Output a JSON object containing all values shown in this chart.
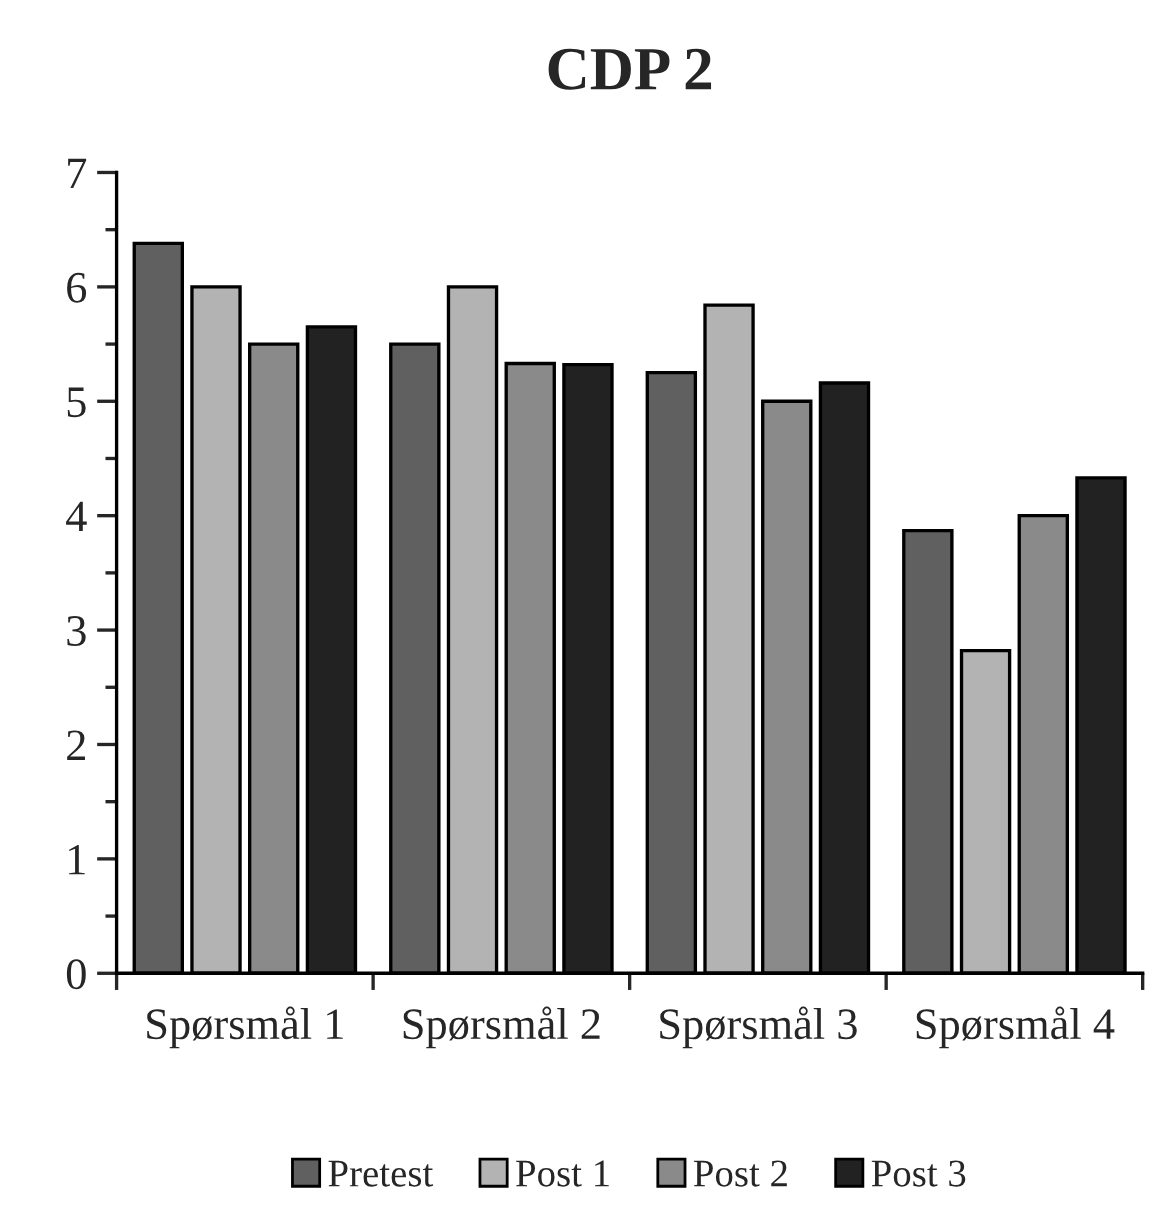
{
  "chart_data": {
    "type": "bar",
    "title": "CDP 2",
    "categories": [
      "Spørsmål 1",
      "Spørsmål 2",
      "Spørsmål 3",
      "Spørsmål 4"
    ],
    "series": [
      {
        "name": "Pretest",
        "color": "#606060",
        "values": [
          6.38,
          5.5,
          5.25,
          3.87
        ]
      },
      {
        "name": "Post 1",
        "color": "#b3b3b3",
        "values": [
          6.0,
          6.0,
          5.84,
          2.82
        ]
      },
      {
        "name": "Post 2",
        "color": "#8a8a8a",
        "values": [
          5.5,
          5.33,
          5.0,
          4.0
        ]
      },
      {
        "name": "Post 3",
        "color": "#222222",
        "values": [
          5.65,
          5.32,
          5.16,
          4.33
        ]
      }
    ],
    "ylim": [
      0,
      7
    ],
    "yticks": [
      0,
      1,
      2,
      3,
      4,
      5,
      6,
      7
    ],
    "grid": false,
    "legend": "bottom"
  }
}
